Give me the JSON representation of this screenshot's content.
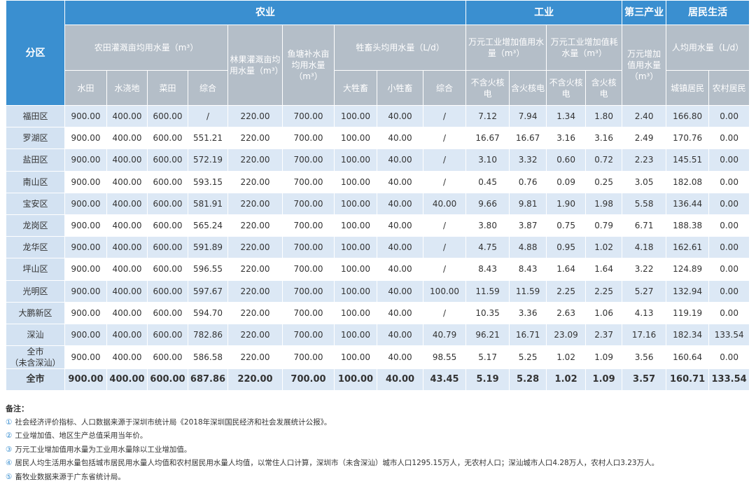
{
  "table": {
    "corner": "分区",
    "groups": [
      "农业",
      "工业",
      "第三产业",
      "居民生活"
    ],
    "subheads": [
      "农田灌溉亩均用水量（m³）",
      "林果灌溉亩均用水量（m³）",
      "鱼塘补水亩均用水量（m³）",
      "牲畜头均用水量（L/d）",
      "万元工业增加值用水量（m³）",
      "万元工业增加值耗水量（m³）",
      "万元增加值用水量（m³）",
      "人均用水量（L/d）"
    ],
    "leaves": [
      "水田",
      "水浇地",
      "菜田",
      "综合",
      "大牲畜",
      "小牲畜",
      "综合",
      "不含火核电",
      "含火核电",
      "不含火核电",
      "含火核电",
      "城镇居民",
      "农村居民"
    ],
    "rows": [
      [
        "福田区",
        "900.00",
        "400.00",
        "600.00",
        "/",
        "220.00",
        "700.00",
        "100.00",
        "40.00",
        "/",
        "7.12",
        "7.94",
        "1.34",
        "1.80",
        "2.40",
        "166.80",
        "0.00"
      ],
      [
        "罗湖区",
        "900.00",
        "400.00",
        "600.00",
        "551.21",
        "220.00",
        "700.00",
        "100.00",
        "40.00",
        "/",
        "16.67",
        "16.67",
        "3.16",
        "3.16",
        "2.49",
        "170.76",
        "0.00"
      ],
      [
        "盐田区",
        "900.00",
        "400.00",
        "600.00",
        "572.19",
        "220.00",
        "700.00",
        "100.00",
        "40.00",
        "/",
        "3.10",
        "3.32",
        "0.60",
        "0.72",
        "2.23",
        "145.51",
        "0.00"
      ],
      [
        "南山区",
        "900.00",
        "400.00",
        "600.00",
        "593.15",
        "220.00",
        "700.00",
        "100.00",
        "40.00",
        "/",
        "0.45",
        "0.76",
        "0.09",
        "0.25",
        "3.05",
        "182.08",
        "0.00"
      ],
      [
        "宝安区",
        "900.00",
        "400.00",
        "600.00",
        "581.91",
        "220.00",
        "700.00",
        "100.00",
        "40.00",
        "40.00",
        "9.66",
        "9.81",
        "1.90",
        "1.98",
        "5.58",
        "136.44",
        "0.00"
      ],
      [
        "龙岗区",
        "900.00",
        "400.00",
        "600.00",
        "565.24",
        "220.00",
        "700.00",
        "100.00",
        "40.00",
        "/",
        "3.80",
        "3.87",
        "0.75",
        "0.79",
        "6.71",
        "188.38",
        "0.00"
      ],
      [
        "龙华区",
        "900.00",
        "400.00",
        "600.00",
        "591.89",
        "220.00",
        "700.00",
        "100.00",
        "40.00",
        "/",
        "4.75",
        "4.88",
        "0.95",
        "1.02",
        "4.18",
        "162.61",
        "0.00"
      ],
      [
        "坪山区",
        "900.00",
        "400.00",
        "600.00",
        "596.55",
        "220.00",
        "700.00",
        "100.00",
        "40.00",
        "/",
        "8.43",
        "8.43",
        "1.64",
        "1.64",
        "3.22",
        "124.89",
        "0.00"
      ],
      [
        "光明区",
        "900.00",
        "400.00",
        "600.00",
        "597.67",
        "220.00",
        "700.00",
        "100.00",
        "40.00",
        "100.00",
        "11.59",
        "11.59",
        "2.25",
        "2.25",
        "5.27",
        "132.94",
        "0.00"
      ],
      [
        "大鹏新区",
        "900.00",
        "400.00",
        "600.00",
        "594.70",
        "220.00",
        "700.00",
        "100.00",
        "40.00",
        "/",
        "10.35",
        "3.36",
        "2.63",
        "1.06",
        "4.13",
        "119.19",
        "0.00"
      ],
      [
        "深汕",
        "900.00",
        "400.00",
        "600.00",
        "782.86",
        "220.00",
        "700.00",
        "100.00",
        "40.00",
        "40.79",
        "96.21",
        "16.71",
        "23.09",
        "2.37",
        "17.16",
        "182.34",
        "133.54"
      ],
      [
        "全市\n（未含深汕）",
        "900.00",
        "400.00",
        "600.00",
        "586.58",
        "220.00",
        "700.00",
        "100.00",
        "40.00",
        "98.55",
        "5.17",
        "5.25",
        "1.02",
        "1.09",
        "3.56",
        "160.64",
        "0.00"
      ],
      [
        "全市",
        "900.00",
        "400.00",
        "600.00",
        "687.86",
        "220.00",
        "700.00",
        "100.00",
        "40.00",
        "43.45",
        "5.19",
        "5.28",
        "1.02",
        "1.09",
        "3.57",
        "160.71",
        "133.54"
      ]
    ]
  },
  "notes": {
    "title": "备注：",
    "items": [
      {
        "mark": "①",
        "text": "社会经济评价指标、人口数据来源于深圳市统计局《2018年深圳国民经济和社会发展统计公报》。"
      },
      {
        "mark": "②",
        "text": "工业增加值、地区生产总值采用当年价。"
      },
      {
        "mark": "③",
        "text": "万元工业增加值用水量为工业用水量除以工业增加值。"
      },
      {
        "mark": "④",
        "text": "居民人均生活用水量包括城市居民用水量人均值和农村居民用水量人均值，以常住人口计算，深圳市（未含深汕）城市人口1295.15万人，无农村人口；深汕城市人口4.28万人，农村人口3.23万人。"
      },
      {
        "mark": "⑤",
        "text": "畜牧业数据来源于广东省统计局。"
      }
    ]
  }
}
